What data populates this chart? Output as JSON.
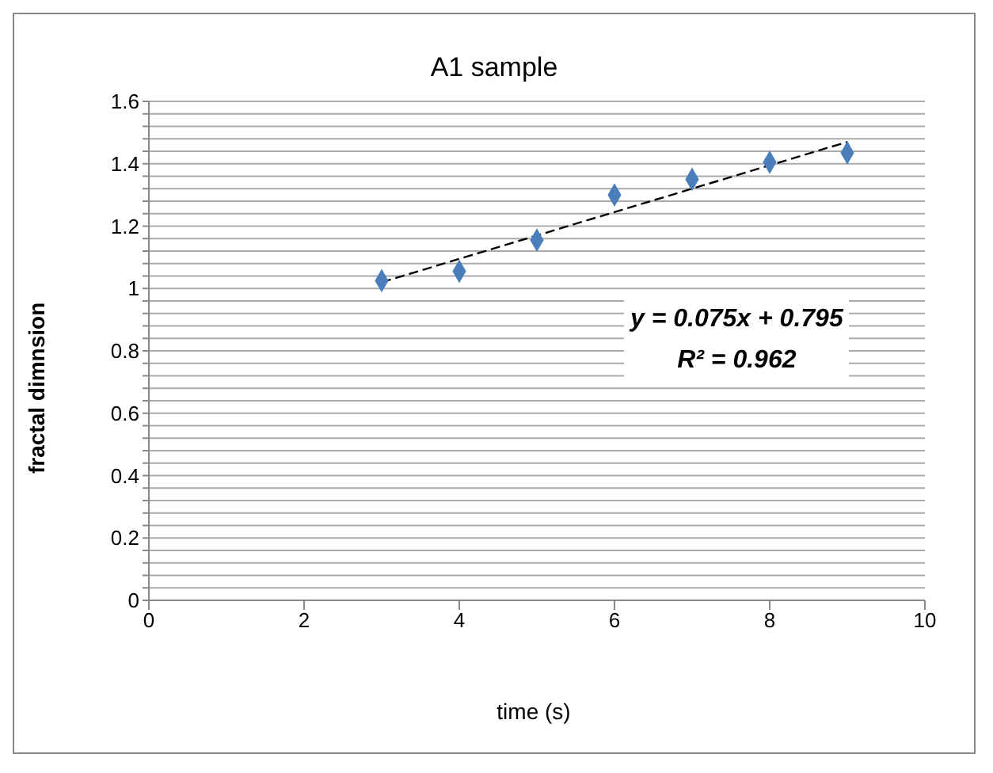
{
  "chart_data": {
    "type": "scatter",
    "title": "A1 sample",
    "xlabel": "time (s)",
    "ylabel": "fractal dimnsion",
    "annotations": [
      "y = 0.075x + 0.795",
      "R² = 0.962"
    ],
    "series": [
      {
        "color": "#4a7ebb",
        "x": [
          3,
          4,
          5,
          6,
          7,
          8,
          9
        ],
        "values": [
          1.025,
          1.055,
          1.155,
          1.3,
          1.35,
          1.405,
          1.435
        ],
        "marker": "diamond"
      },
      {
        "type": "line",
        "color": "#000000",
        "x": [
          3,
          9
        ],
        "values": [
          1.02,
          1.47
        ],
        "line_style": "dashed"
      }
    ],
    "xlim": [
      0,
      10
    ],
    "xticks": [
      0,
      2,
      4,
      6,
      8,
      10
    ],
    "ylim": [
      0,
      1.6
    ],
    "yticks": [
      0,
      {
        "value": 0.04,
        "label": null
      },
      {
        "value": 0.08,
        "label": null
      },
      {
        "value": 0.12,
        "label": null
      },
      {
        "value": 0.16,
        "label": null
      },
      0.2,
      {
        "value": 0.24,
        "label": null
      },
      {
        "value": 0.28,
        "label": null
      },
      {
        "value": 0.32,
        "label": null
      },
      {
        "value": 0.36,
        "label": null
      },
      0.4,
      {
        "value": 0.44,
        "label": null
      },
      {
        "value": 0.48,
        "label": null
      },
      {
        "value": 0.52,
        "label": null
      },
      {
        "value": 0.56,
        "label": null
      },
      0.6,
      {
        "value": 0.64,
        "label": null
      },
      {
        "value": 0.68,
        "label": null
      },
      {
        "value": 0.72,
        "label": null
      },
      {
        "value": 0.76,
        "label": null
      },
      0.8,
      {
        "value": 0.84,
        "label": null
      },
      {
        "value": 0.88,
        "label": null
      },
      {
        "value": 0.92,
        "label": null
      },
      {
        "value": 0.96,
        "label": null
      },
      1,
      {
        "value": 1.04,
        "label": null
      },
      {
        "value": 1.08,
        "label": null
      },
      {
        "value": 1.12,
        "label": null
      },
      {
        "value": 1.16,
        "label": null
      },
      1.2,
      {
        "value": 1.24,
        "label": null
      },
      {
        "value": 1.28,
        "label": null
      },
      {
        "value": 1.32,
        "label": null
      },
      {
        "value": 1.36,
        "label": null
      },
      1.4,
      {
        "value": 1.44,
        "label": null
      },
      {
        "value": 1.48,
        "label": null
      },
      {
        "value": 1.52,
        "label": null
      },
      {
        "value": 1.56,
        "label": null
      },
      1.6
    ],
    "grid": "y"
  }
}
